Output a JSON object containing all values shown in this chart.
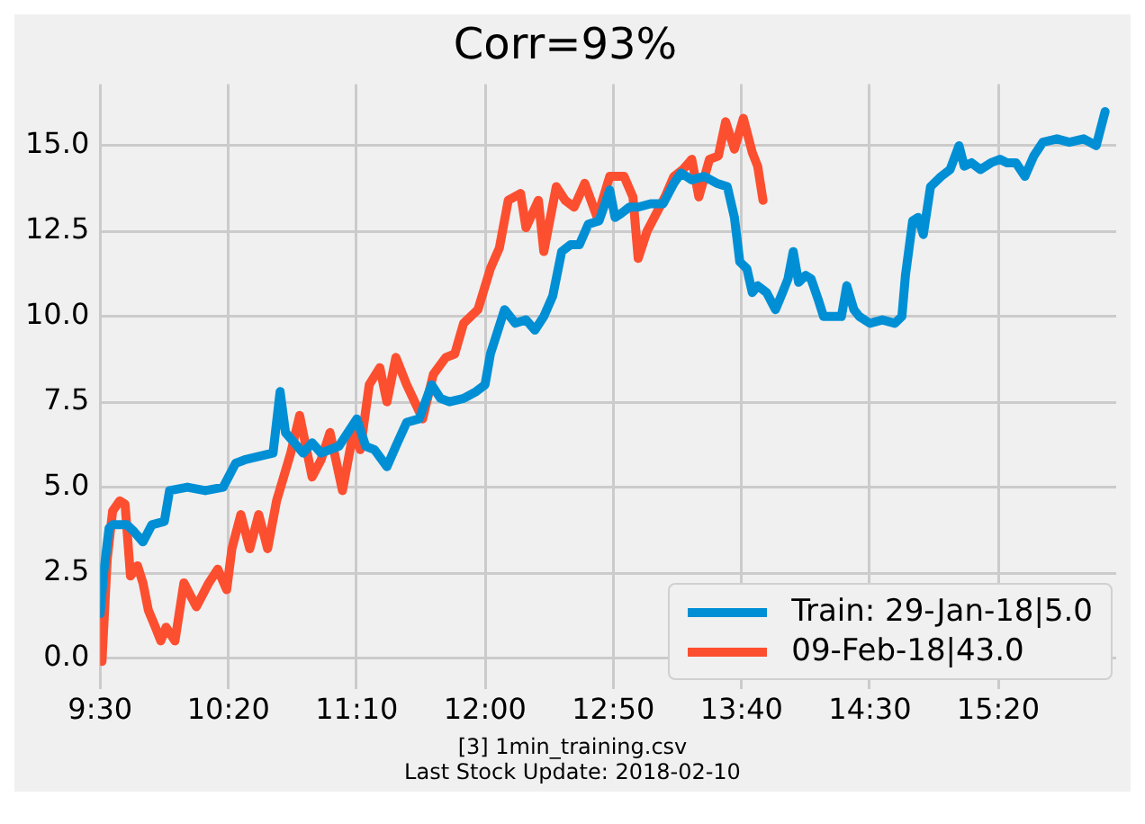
{
  "chart_data": {
    "type": "line",
    "title": "Corr=93%",
    "annotations": [
      "[3] 1min_training.csv",
      "Last Stock Update: 2018-02-10"
    ],
    "xlim": [
      9.5,
      16.1
    ],
    "xticks": [
      {
        "value": 9.5,
        "label": "9:30"
      },
      {
        "value": 10.3333,
        "label": "10:20"
      },
      {
        "value": 11.1667,
        "label": "11:10"
      },
      {
        "value": 12,
        "label": "12:00"
      },
      {
        "value": 12.8333,
        "label": "12:50"
      },
      {
        "value": 13.6667,
        "label": "13:40"
      },
      {
        "value": 14.5,
        "label": "14:30"
      },
      {
        "value": 15.3333,
        "label": "15:20"
      }
    ],
    "ylim": [
      -0.9,
      16.8
    ],
    "yticks": [
      {
        "value": 0,
        "label": "0.0"
      },
      {
        "value": 2.5,
        "label": "2.5"
      },
      {
        "value": 5,
        "label": "5.0"
      },
      {
        "value": 7.5,
        "label": "7.5"
      },
      {
        "value": 10,
        "label": "10.0"
      },
      {
        "value": 12.5,
        "label": "12.5"
      },
      {
        "value": 15,
        "label": "15.0"
      }
    ],
    "grid": true,
    "legend": "bottom right",
    "marker": "none",
    "line_style": "solid",
    "series": [
      {
        "name": "Train: 29-Jan-18|5.0",
        "color": "#008fd5",
        "x": [
          9.5,
          9.523,
          9.558,
          9.581,
          9.627,
          9.674,
          9.72,
          9.778,
          9.836,
          9.917,
          9.951,
          10.067,
          10.183,
          10.299,
          10.38,
          10.438,
          10.53,
          10.623,
          10.669,
          10.704,
          10.762,
          10.819,
          10.877,
          10.935,
          11.051,
          11.167,
          11.225,
          11.282,
          11.363,
          11.421,
          11.491,
          11.572,
          11.653,
          11.711,
          11.769,
          11.861,
          11.942,
          12.0,
          12.035,
          12.127,
          12.197,
          12.266,
          12.324,
          12.382,
          12.44,
          12.498,
          12.556,
          12.613,
          12.671,
          12.741,
          12.81,
          12.845,
          12.88,
          12.938,
          12.995,
          13.076,
          13.157,
          13.227,
          13.273,
          13.343,
          13.424,
          13.505,
          13.574,
          13.62,
          13.655,
          13.701,
          13.736,
          13.771,
          13.829,
          13.887,
          13.933,
          13.968,
          14.002,
          14.037,
          14.083,
          14.118,
          14.164,
          14.199,
          14.257,
          14.315,
          14.35,
          14.396,
          14.431,
          14.5,
          14.581,
          14.662,
          14.708,
          14.731,
          14.778,
          14.813,
          14.847,
          14.894,
          14.963,
          15.021,
          15.079,
          15.113,
          15.16,
          15.218,
          15.287,
          15.345,
          15.391,
          15.449,
          15.507,
          15.565,
          15.623,
          15.715,
          15.796,
          15.889,
          15.97,
          16.028
        ],
        "values": [
          1.3,
          2.5,
          3.8,
          3.9,
          3.9,
          3.9,
          3.7,
          3.4,
          3.9,
          4.0,
          4.9,
          5.0,
          4.9,
          5.0,
          5.7,
          5.8,
          5.9,
          6.0,
          7.8,
          6.6,
          6.3,
          6.0,
          6.3,
          6.0,
          6.2,
          7.0,
          6.2,
          6.1,
          5.6,
          6.2,
          6.9,
          7.0,
          8.0,
          7.6,
          7.5,
          7.6,
          7.8,
          8.0,
          8.9,
          10.2,
          9.8,
          9.9,
          9.6,
          10.0,
          10.6,
          11.9,
          12.1,
          12.1,
          12.7,
          12.8,
          13.7,
          12.9,
          13.0,
          13.2,
          13.2,
          13.3,
          13.3,
          13.9,
          14.2,
          14.0,
          14.1,
          13.9,
          13.8,
          12.9,
          11.6,
          11.4,
          10.7,
          10.9,
          10.7,
          10.2,
          10.7,
          11.1,
          11.9,
          11.0,
          11.2,
          11.1,
          10.5,
          10.0,
          10.0,
          10.0,
          10.9,
          10.2,
          10.0,
          9.8,
          9.9,
          9.8,
          10.0,
          11.2,
          12.8,
          12.9,
          12.4,
          13.8,
          14.1,
          14.3,
          15.0,
          14.4,
          14.5,
          14.3,
          14.5,
          14.6,
          14.5,
          14.5,
          14.1,
          14.7,
          15.1,
          15.2,
          15.1,
          15.2,
          15.0,
          16.0
        ]
      },
      {
        "name": "09-Feb-18|43.0",
        "color": "#fc4f30",
        "x": [
          9.512,
          9.546,
          9.581,
          9.627,
          9.662,
          9.697,
          9.743,
          9.778,
          9.813,
          9.859,
          9.894,
          9.928,
          9.986,
          10.044,
          10.125,
          10.206,
          10.264,
          10.322,
          10.356,
          10.414,
          10.472,
          10.53,
          10.588,
          10.646,
          10.738,
          10.796,
          10.877,
          10.935,
          10.993,
          11.074,
          11.144,
          11.19,
          11.248,
          11.317,
          11.363,
          11.421,
          11.491,
          11.595,
          11.664,
          11.745,
          11.803,
          11.861,
          11.954,
          12.035,
          12.093,
          12.151,
          12.231,
          12.266,
          12.347,
          12.382,
          12.463,
          12.521,
          12.579,
          12.648,
          12.729,
          12.81,
          12.903,
          12.961,
          12.995,
          13.053,
          13.111,
          13.169,
          13.227,
          13.285,
          13.343,
          13.389,
          13.458,
          13.516,
          13.563,
          13.62,
          13.678,
          13.736,
          13.771,
          13.806
        ],
        "values": [
          -0.1,
          2.9,
          4.3,
          4.6,
          4.5,
          2.4,
          2.7,
          2.2,
          1.4,
          0.9,
          0.5,
          0.9,
          0.5,
          2.2,
          1.5,
          2.2,
          2.6,
          2.0,
          3.2,
          4.2,
          3.2,
          4.2,
          3.2,
          4.6,
          6.0,
          7.1,
          5.3,
          5.8,
          6.6,
          4.9,
          6.6,
          6.1,
          8.0,
          8.5,
          7.5,
          8.8,
          8.0,
          7.0,
          8.3,
          8.8,
          8.9,
          9.8,
          10.2,
          11.4,
          12.0,
          13.4,
          13.6,
          12.6,
          13.4,
          11.9,
          13.8,
          13.4,
          13.2,
          13.9,
          12.9,
          14.1,
          14.1,
          13.5,
          11.7,
          12.5,
          13.0,
          13.5,
          14.1,
          14.3,
          14.6,
          13.5,
          14.6,
          14.7,
          15.7,
          14.9,
          15.8,
          14.8,
          14.4,
          13.4
        ]
      }
    ]
  }
}
